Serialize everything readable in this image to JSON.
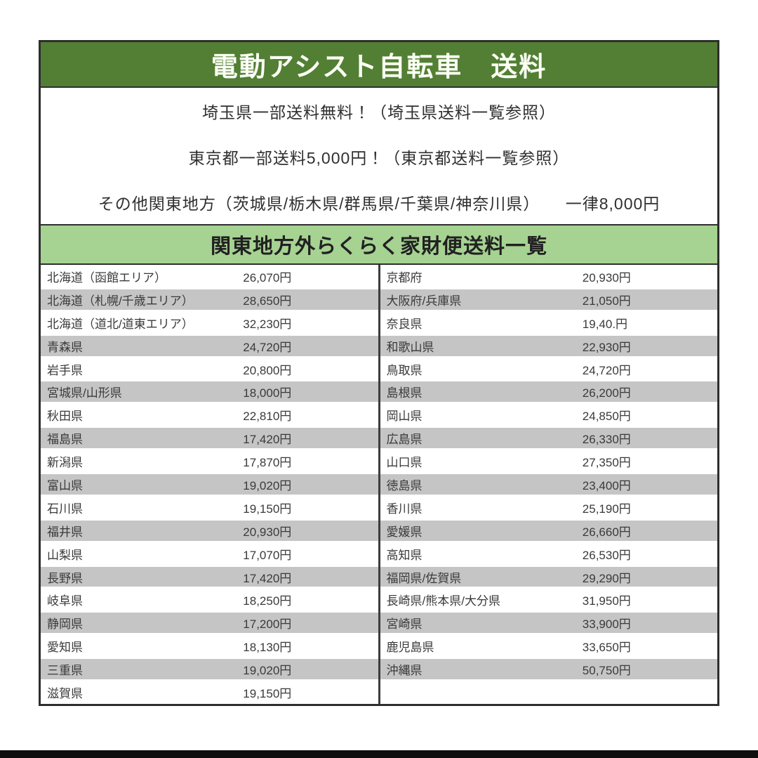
{
  "theme": {
    "header_green": "#527f34",
    "subheader_green": "#a6d292",
    "row_alt_gray": "#c5c5c5",
    "frame_border": "#2e2e2e",
    "bottom_bar_black": "#0f0f0f"
  },
  "title": "電動アシスト自転車　送料",
  "notes": [
    "埼玉県一部送料無料！（埼玉県送料一覧参照）",
    "東京都一部送料5,000円！（東京都送料一覧参照）",
    "その他関東地方（茨城県/栃木県/群馬県/千葉県/神奈川県）　　一律8,000円"
  ],
  "table_title": "関東地方外らくらく家財便送料一覧",
  "shipping_table": {
    "left_column": [
      {
        "region": "北海道（函館エリア）",
        "fee": "26,070円"
      },
      {
        "region": "北海道（札幌/千歳エリア）",
        "fee": "28,650円"
      },
      {
        "region": "北海道（道北/道東エリア）",
        "fee": "32,230円"
      },
      {
        "region": "青森県",
        "fee": "24,720円"
      },
      {
        "region": "岩手県",
        "fee": "20,800円"
      },
      {
        "region": "宮城県/山形県",
        "fee": "18,000円"
      },
      {
        "region": "秋田県",
        "fee": "22,810円"
      },
      {
        "region": "福島県",
        "fee": "17,420円"
      },
      {
        "region": "新潟県",
        "fee": "17,870円"
      },
      {
        "region": "富山県",
        "fee": "19,020円"
      },
      {
        "region": "石川県",
        "fee": "19,150円"
      },
      {
        "region": "福井県",
        "fee": "20,930円"
      },
      {
        "region": "山梨県",
        "fee": "17,070円"
      },
      {
        "region": "長野県",
        "fee": "17,420円"
      },
      {
        "region": "岐阜県",
        "fee": "18,250円"
      },
      {
        "region": "静岡県",
        "fee": "17,200円"
      },
      {
        "region": "愛知県",
        "fee": "18,130円"
      },
      {
        "region": "三重県",
        "fee": "19,020円"
      },
      {
        "region": "滋賀県",
        "fee": "19,150円"
      }
    ],
    "right_column": [
      {
        "region": "京都府",
        "fee": "20,930円"
      },
      {
        "region": "大阪府/兵庫県",
        "fee": "21,050円"
      },
      {
        "region": "奈良県",
        "fee": "19,40.円"
      },
      {
        "region": "和歌山県",
        "fee": "22,930円"
      },
      {
        "region": "鳥取県",
        "fee": "24,720円"
      },
      {
        "region": "島根県",
        "fee": "26,200円"
      },
      {
        "region": "岡山県",
        "fee": "24,850円"
      },
      {
        "region": "広島県",
        "fee": "26,330円"
      },
      {
        "region": "山口県",
        "fee": "27,350円"
      },
      {
        "region": "徳島県",
        "fee": "23,400円"
      },
      {
        "region": "香川県",
        "fee": "25,190円"
      },
      {
        "region": "愛媛県",
        "fee": "26,660円"
      },
      {
        "region": "高知県",
        "fee": "26,530円"
      },
      {
        "region": "福岡県/佐賀県",
        "fee": "29,290円"
      },
      {
        "region": "長崎県/熊本県/大分県",
        "fee": "31,950円"
      },
      {
        "region": "宮崎県",
        "fee": "33,900円"
      },
      {
        "region": "鹿児島県",
        "fee": "33,650円"
      },
      {
        "region": "沖縄県",
        "fee": "50,750円"
      },
      {
        "region": "",
        "fee": ""
      }
    ]
  }
}
